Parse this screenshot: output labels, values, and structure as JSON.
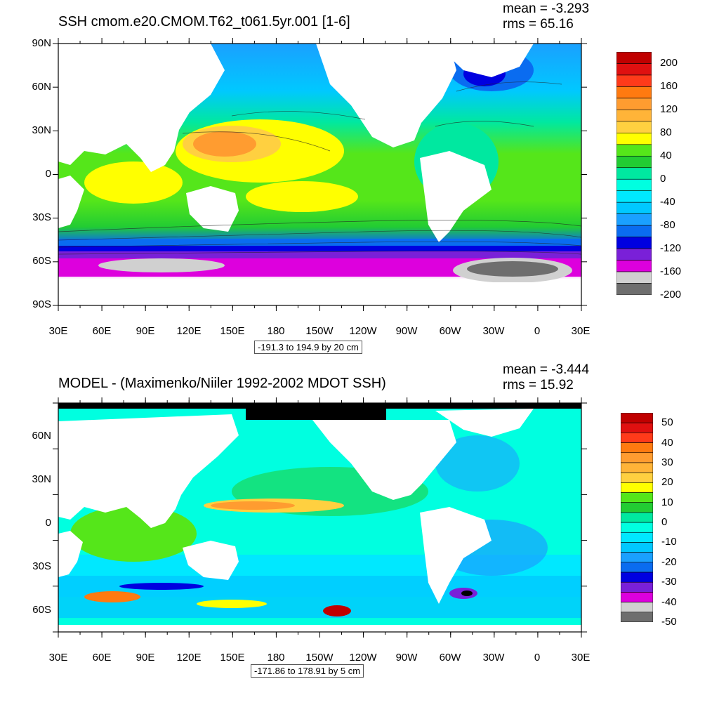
{
  "top": {
    "title": "SSH cmom.e20.CMOM.T62_t061.5yr.001 [1-6]",
    "mean": "mean = -3.293",
    "rms": "rms = 65.16",
    "lat_labels": [
      "90N",
      "60N",
      "30N",
      "0",
      "30S",
      "60S",
      "90S"
    ],
    "lon_labels": [
      "30E",
      "60E",
      "90E",
      "120E",
      "150E",
      "180",
      "150W",
      "120W",
      "90W",
      "60W",
      "30W",
      "0",
      "30E"
    ],
    "range": "-191.3 to 194.9 by 20 cm",
    "legend_labels": [
      "200",
      "160",
      "120",
      "80",
      "40",
      "0",
      "-40",
      "-80",
      "-120",
      "-160",
      "-200"
    ],
    "legend_colors": [
      "#c00000",
      "#e01010",
      "#ff3a1a",
      "#ff7a10",
      "#ff9c30",
      "#ffb438",
      "#ffd040",
      "#ffff00",
      "#55e61a",
      "#22cc33",
      "#00e8a0",
      "#00ffe0",
      "#00e8ff",
      "#00c8ff",
      "#1aa0ff",
      "#0a6cf0",
      "#0000e0",
      "#7a20d8",
      "#dd00dd",
      "#d0d0d0",
      "#6e6e6e"
    ]
  },
  "bottom": {
    "title": "MODEL - (Maximenko/Niiler 1992-2002 MDOT SSH)",
    "mean": "mean = -3.444",
    "rms": "rms = 15.92",
    "lat_labels": [
      "60N",
      "30N",
      "0",
      "30S",
      "60S"
    ],
    "lon_labels": [
      "30E",
      "60E",
      "90E",
      "120E",
      "150E",
      "180",
      "150W",
      "120W",
      "90W",
      "60W",
      "30W",
      "0",
      "30E"
    ],
    "range": "-171.86 to 178.91 by 5 cm",
    "legend_labels": [
      "50",
      "40",
      "30",
      "20",
      "10",
      "0",
      "-10",
      "-20",
      "-30",
      "-40",
      "-50"
    ],
    "legend_colors": [
      "#c00000",
      "#e01010",
      "#ff3a1a",
      "#ff7a10",
      "#ff9c30",
      "#ffb438",
      "#ffd040",
      "#ffff00",
      "#55e61a",
      "#22cc33",
      "#00e8a0",
      "#00ffe0",
      "#00e8ff",
      "#00c8ff",
      "#1aa0ff",
      "#0a6cf0",
      "#0000e0",
      "#7a20d8",
      "#dd00dd",
      "#d0d0d0",
      "#6e6e6e"
    ]
  }
}
